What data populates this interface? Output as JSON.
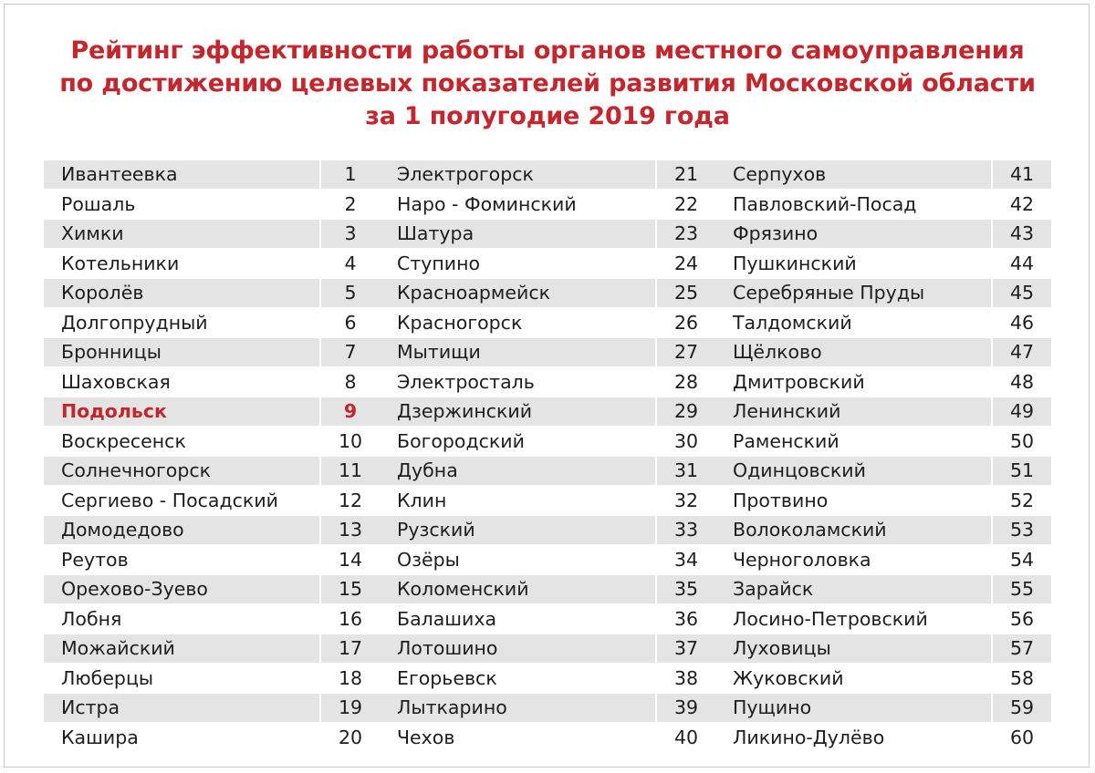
{
  "title": {
    "line1": "Рейтинг эффективности работы органов местного самоуправления",
    "line2": "по достижению целевых показателей развития Московской области",
    "line3": "за 1 полугодие 2019 года"
  },
  "columns": [
    [
      {
        "name": "Ивантеевка",
        "rank": "1"
      },
      {
        "name": "Рошаль",
        "rank": "2"
      },
      {
        "name": "Химки",
        "rank": "3"
      },
      {
        "name": "Котельники",
        "rank": "4"
      },
      {
        "name": "Королёв",
        "rank": "5"
      },
      {
        "name": "Долгопрудный",
        "rank": "6"
      },
      {
        "name": "Бронницы",
        "rank": "7"
      },
      {
        "name": "Шаховская",
        "rank": "8"
      },
      {
        "name": "Подольск",
        "rank": "9",
        "highlight": true
      },
      {
        "name": "Воскресенск",
        "rank": "10"
      },
      {
        "name": "Солнечногорск",
        "rank": "11"
      },
      {
        "name": "Сергиево - Посадский",
        "rank": "12"
      },
      {
        "name": "Домодедово",
        "rank": "13"
      },
      {
        "name": "Реутов",
        "rank": "14"
      },
      {
        "name": "Орехово-Зуево",
        "rank": "15"
      },
      {
        "name": "Лобня",
        "rank": "16"
      },
      {
        "name": "Можайский",
        "rank": "17"
      },
      {
        "name": "Люберцы",
        "rank": "18"
      },
      {
        "name": "Истра",
        "rank": "19"
      },
      {
        "name": "Кашира",
        "rank": "20"
      }
    ],
    [
      {
        "name": "Электрогорск",
        "rank": "21"
      },
      {
        "name": "Наро - Фоминский",
        "rank": "22"
      },
      {
        "name": "Шатура",
        "rank": "23"
      },
      {
        "name": "Ступино",
        "rank": "24"
      },
      {
        "name": "Красноармейск",
        "rank": "25"
      },
      {
        "name": "Красногорск",
        "rank": "26"
      },
      {
        "name": "Мытищи",
        "rank": "27"
      },
      {
        "name": "Электросталь",
        "rank": "28"
      },
      {
        "name": "Дзержинский",
        "rank": "29"
      },
      {
        "name": "Богородский",
        "rank": "30"
      },
      {
        "name": "Дубна",
        "rank": "31"
      },
      {
        "name": "Клин",
        "rank": "32"
      },
      {
        "name": "Рузский",
        "rank": "33"
      },
      {
        "name": "Озёры",
        "rank": "34"
      },
      {
        "name": "Коломенский",
        "rank": "35"
      },
      {
        "name": "Балашиха",
        "rank": "36"
      },
      {
        "name": "Лотошино",
        "rank": "37"
      },
      {
        "name": "Егорьевск",
        "rank": "38"
      },
      {
        "name": "Лыткарино",
        "rank": "39"
      },
      {
        "name": "Чехов",
        "rank": "40"
      }
    ],
    [
      {
        "name": "Серпухов",
        "rank": "41"
      },
      {
        "name": "Павловский-Посад",
        "rank": "42"
      },
      {
        "name": "Фрязино",
        "rank": "43"
      },
      {
        "name": "Пушкинский",
        "rank": "44"
      },
      {
        "name": "Серебряные Пруды",
        "rank": "45"
      },
      {
        "name": "Талдомский",
        "rank": "46"
      },
      {
        "name": "Щёлково",
        "rank": "47"
      },
      {
        "name": "Дмитровский",
        "rank": "48"
      },
      {
        "name": "Ленинский",
        "rank": "49"
      },
      {
        "name": "Раменский",
        "rank": "50"
      },
      {
        "name": "Одинцовский",
        "rank": "51"
      },
      {
        "name": "Протвино",
        "rank": "52"
      },
      {
        "name": "Волоколамский",
        "rank": "53"
      },
      {
        "name": "Черноголовка",
        "rank": "54"
      },
      {
        "name": "Зарайск",
        "rank": "55"
      },
      {
        "name": "Лосино-Петровский",
        "rank": "56"
      },
      {
        "name": "Луховицы",
        "rank": "57"
      },
      {
        "name": "Жуковский",
        "rank": "58"
      },
      {
        "name": "Пущино",
        "rank": "59"
      },
      {
        "name": "Ликино-Дулёво",
        "rank": "60"
      }
    ]
  ],
  "colors": {
    "accent": "#c3272e",
    "row_shade": "#e4e4e4",
    "text": "#1e1e1e"
  }
}
